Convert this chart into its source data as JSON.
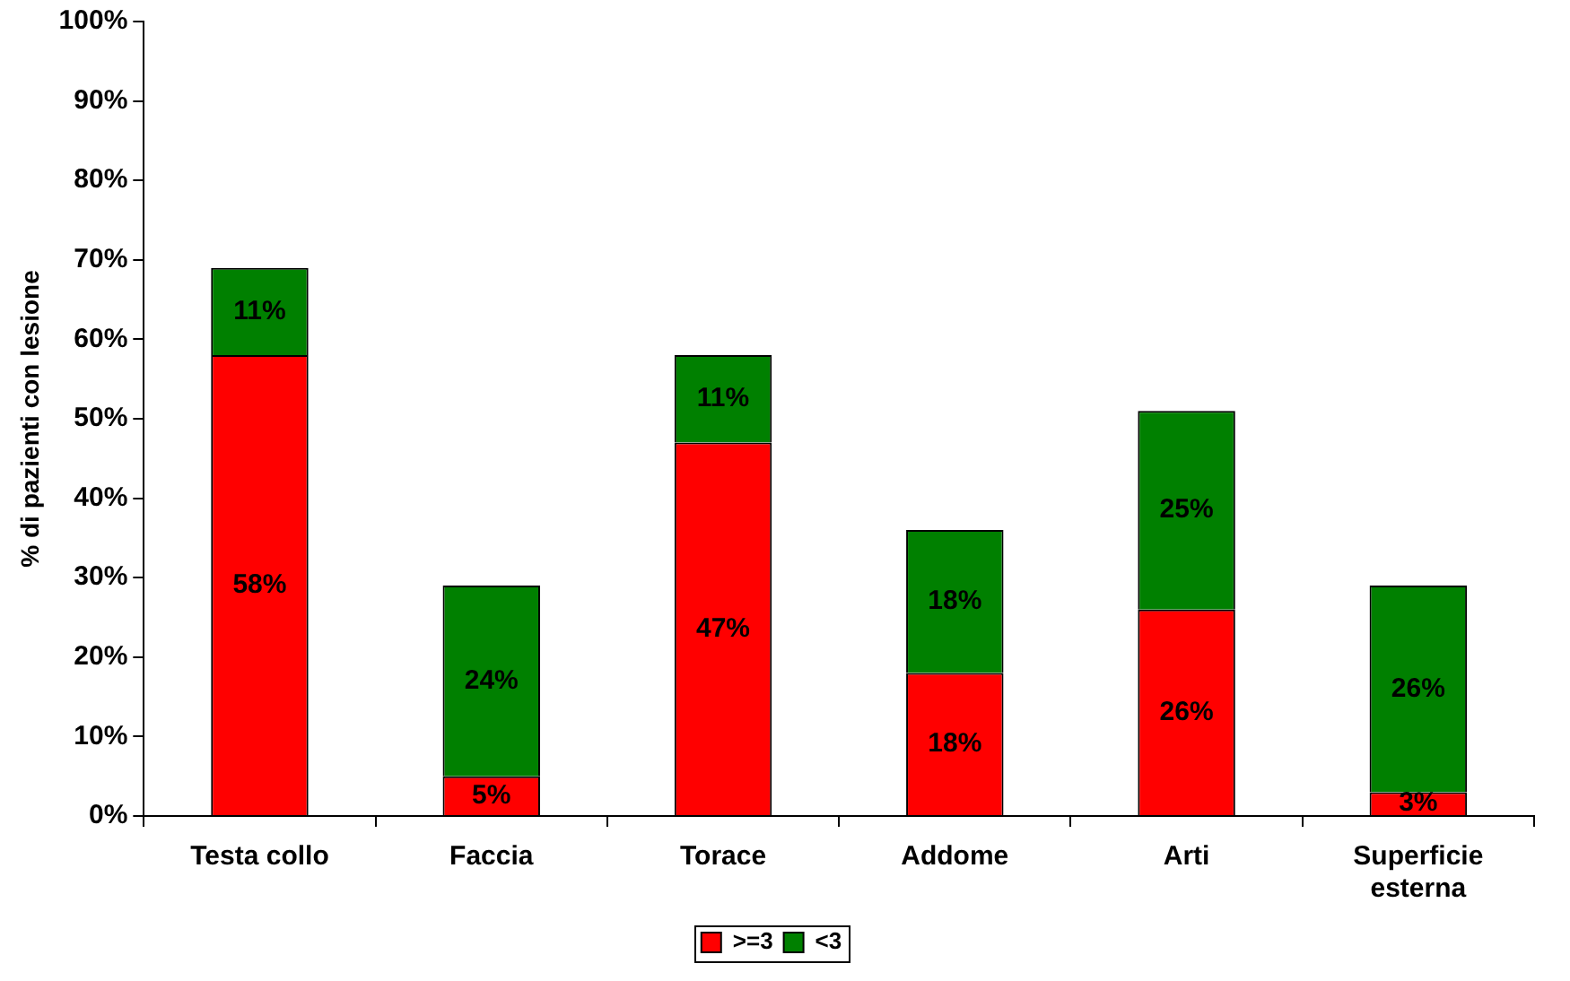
{
  "chart_data": {
    "type": "bar",
    "stacked": true,
    "ylabel": "% di pazienti con lesione",
    "categories": [
      "Testa collo",
      "Faccia",
      "Torace",
      "Addome",
      "Arti",
      "Superficie esterna"
    ],
    "series": [
      {
        "name": ">=3",
        "color": "#ff0000",
        "values": [
          58,
          5,
          47,
          18,
          26,
          3
        ],
        "value_labels": [
          "58%",
          "5%",
          "47%",
          "18%",
          "26%",
          "3%"
        ]
      },
      {
        "name": "<3",
        "color": "#008000",
        "values": [
          11,
          24,
          11,
          18,
          25,
          26
        ],
        "value_labels": [
          "11%",
          "24%",
          "11%",
          "18%",
          "25%",
          "26%"
        ]
      }
    ],
    "ylim": [
      0,
      100
    ],
    "yticks": [
      {
        "value": 0,
        "label": "0%"
      },
      {
        "value": 10,
        "label": "10%"
      },
      {
        "value": 20,
        "label": "20%"
      },
      {
        "value": 30,
        "label": "30%"
      },
      {
        "value": 40,
        "label": "40%"
      },
      {
        "value": 50,
        "label": "50%"
      },
      {
        "value": 60,
        "label": "60%"
      },
      {
        "value": 70,
        "label": "70%"
      },
      {
        "value": 80,
        "label": "80%"
      },
      {
        "value": 90,
        "label": "90%"
      },
      {
        "value": 100,
        "label": "100%"
      }
    ],
    "legend": "bottom",
    "grid": false
  }
}
